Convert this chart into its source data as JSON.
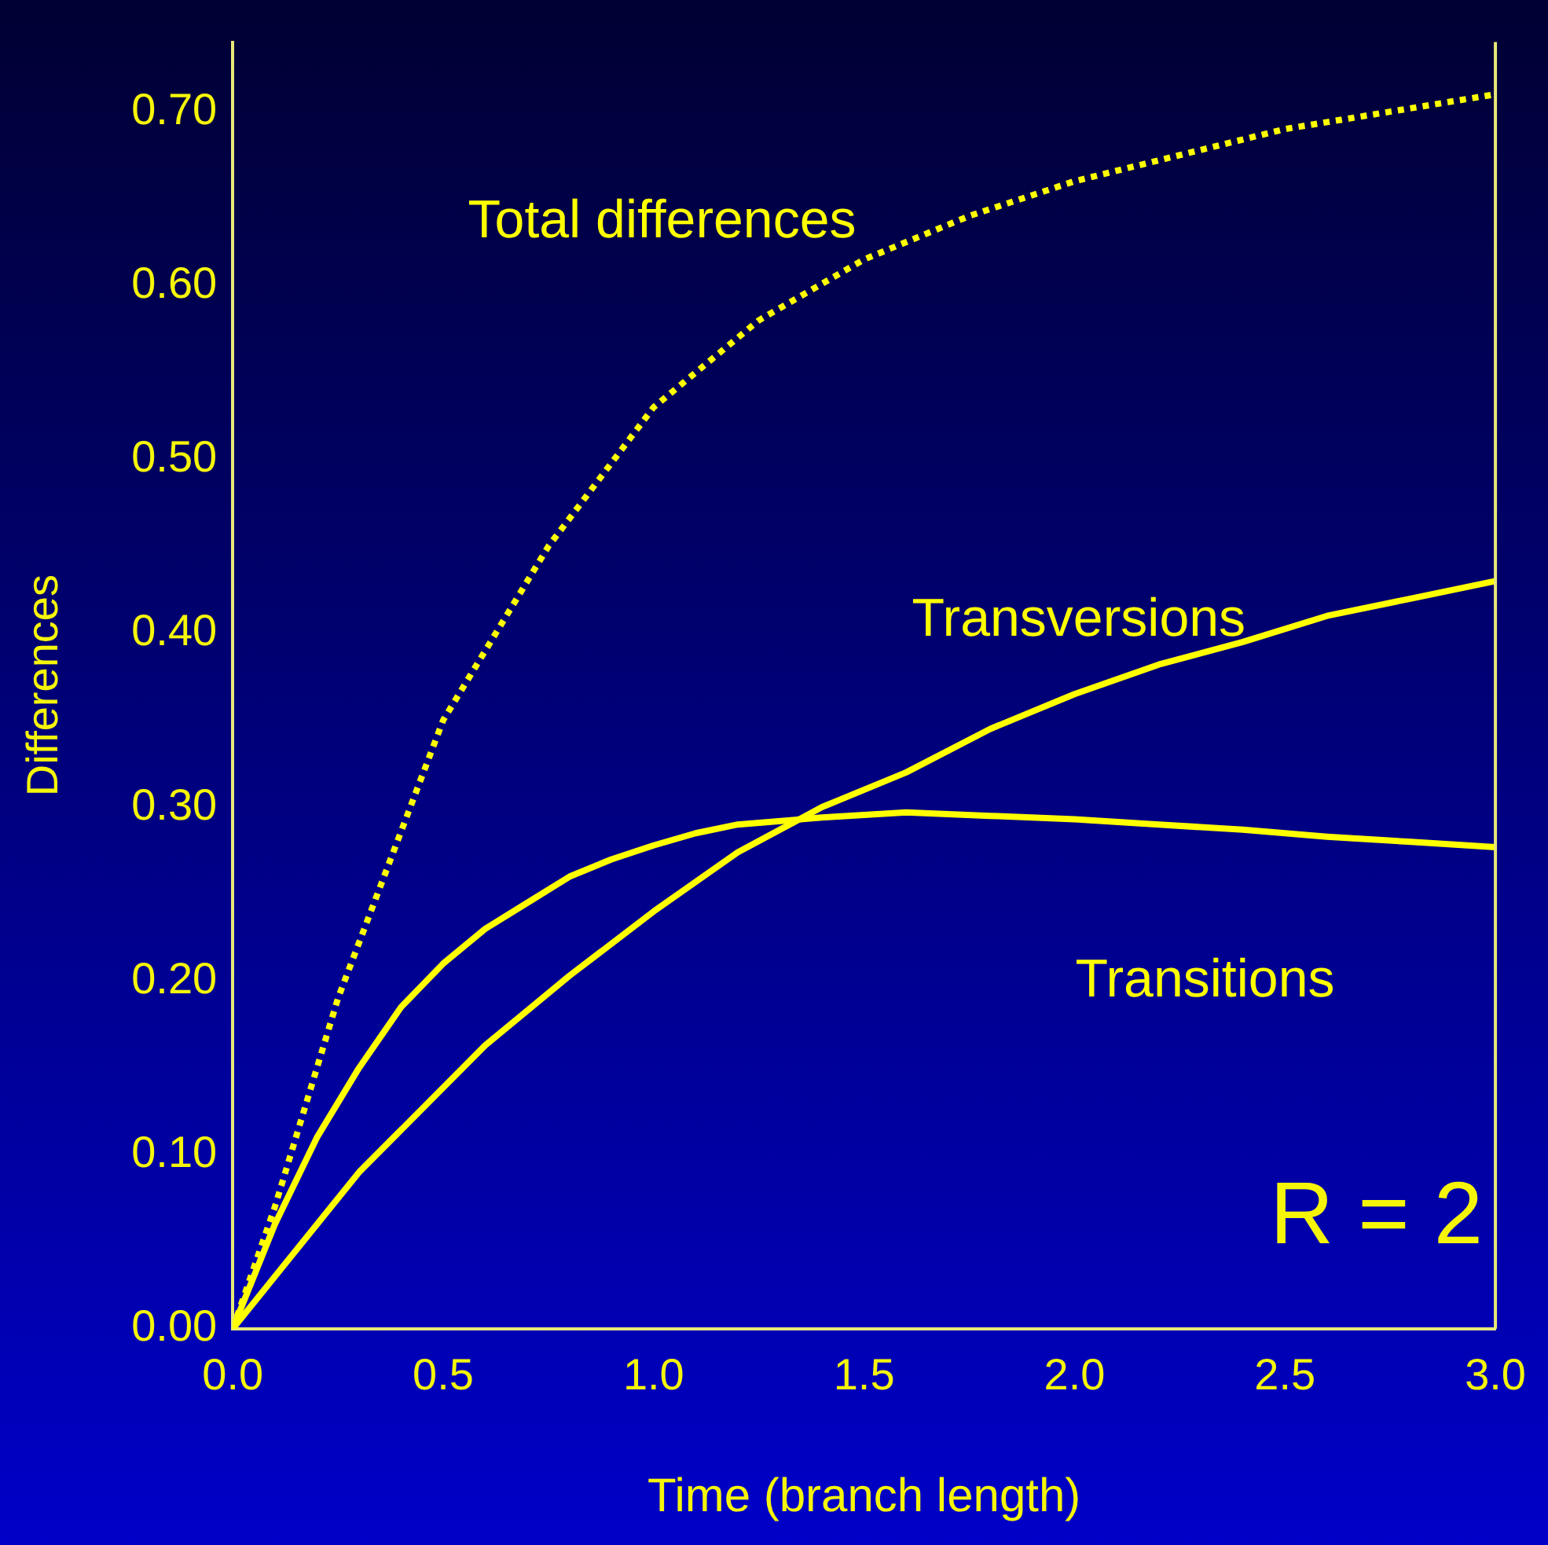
{
  "chart_data": {
    "type": "line",
    "xlabel": "Time (branch length)",
    "ylabel": "Differences",
    "xlim": [
      0,
      3.0
    ],
    "xticks": [
      {
        "value": 0,
        "label": "0.0"
      },
      {
        "value": 0.5,
        "label": "0.5"
      },
      {
        "value": 1,
        "label": "1.0"
      },
      {
        "value": 1.5,
        "label": "1.5"
      },
      {
        "value": 2,
        "label": "2.0"
      },
      {
        "value": 2.5,
        "label": "2.5"
      },
      {
        "value": 3,
        "label": "3.0"
      }
    ],
    "ylim": [
      0,
      0.74
    ],
    "yticks": [
      {
        "value": 0,
        "label": "0.00"
      },
      {
        "value": 0.1,
        "label": "0.10"
      },
      {
        "value": 0.2,
        "label": "0.20"
      },
      {
        "value": 0.3,
        "label": "0.30"
      },
      {
        "value": 0.4,
        "label": "0.40"
      },
      {
        "value": 0.5,
        "label": "0.50"
      },
      {
        "value": 0.6,
        "label": "0.60"
      },
      {
        "value": 0.7,
        "label": "0.70"
      }
    ],
    "grid": false,
    "legend": false,
    "marker": "none",
    "series": [
      {
        "name": "Total differences",
        "color": "#ffff00",
        "line_style": "dotted",
        "x": [
          0,
          0.1,
          0.25,
          0.5,
          0.75,
          1.0,
          1.25,
          1.5,
          1.75,
          2.0,
          2.25,
          2.5,
          2.75,
          3.0
        ],
        "values": [
          0,
          0.07,
          0.19,
          0.35,
          0.45,
          0.53,
          0.58,
          0.615,
          0.64,
          0.66,
          0.675,
          0.69,
          0.7,
          0.71
        ]
      },
      {
        "name": "Transversions",
        "color": "#ffff00",
        "line_style": "solid",
        "x": [
          0,
          0.3,
          0.6,
          0.8,
          1.0,
          1.2,
          1.4,
          1.6,
          1.8,
          2.0,
          2.2,
          2.4,
          2.6,
          2.8,
          3.0
        ],
        "values": [
          0,
          0.09,
          0.163,
          0.203,
          0.24,
          0.274,
          0.3,
          0.32,
          0.345,
          0.365,
          0.382,
          0.395,
          0.41,
          0.42,
          0.43
        ]
      },
      {
        "name": "Transitions",
        "color": "#ffff00",
        "line_style": "solid",
        "x": [
          0,
          0.1,
          0.2,
          0.3,
          0.4,
          0.5,
          0.6,
          0.7,
          0.8,
          0.9,
          1.0,
          1.1,
          1.2,
          1.4,
          1.6,
          1.8,
          2.0,
          2.2,
          2.4,
          2.6,
          2.8,
          3.0
        ],
        "values": [
          0,
          0.06,
          0.11,
          0.15,
          0.185,
          0.21,
          0.23,
          0.245,
          0.26,
          0.27,
          0.278,
          0.285,
          0.29,
          0.294,
          0.297,
          0.295,
          0.293,
          0.29,
          0.287,
          0.283,
          0.28,
          0.277
        ]
      }
    ],
    "annotations": [
      "R = 2"
    ]
  }
}
